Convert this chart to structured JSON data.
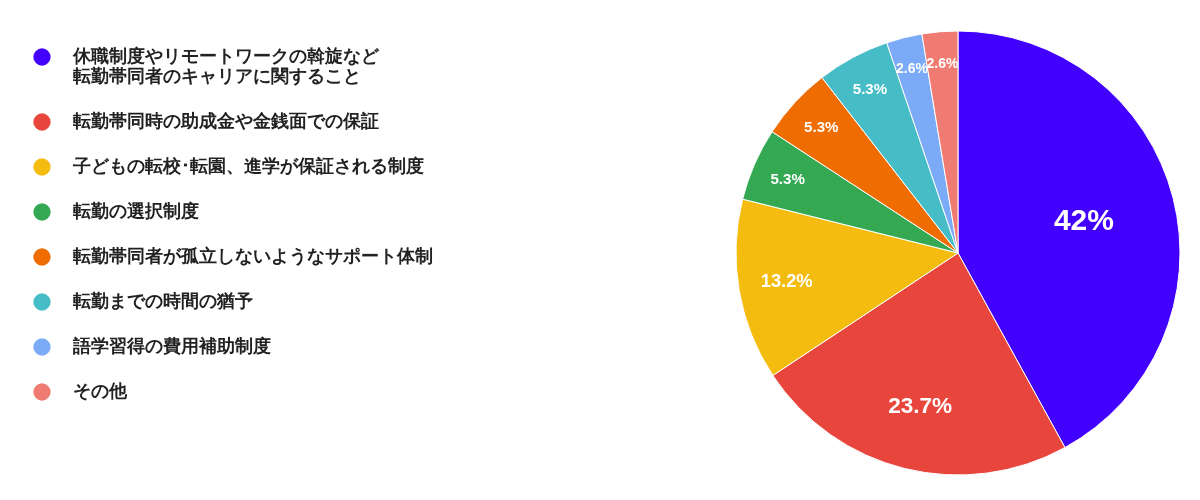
{
  "chart_data": {
    "type": "pie",
    "categories": [
      "休職制度やリモートワークの斡旋など転勤帯同者のキャリアに関すること",
      "転勤帯同時の助成金や金銭面での保証",
      "子どもの転校･転園、進学が保証される制度",
      "転勤の選択制度",
      "転勤帯同者が孤立しないようなサポート体制",
      "転勤までの時間の猶予",
      "語学習得の費用補助制度",
      "その他"
    ],
    "values": [
      42,
      23.7,
      13.2,
      5.3,
      5.3,
      5.3,
      2.6,
      2.6
    ],
    "colors": [
      "#4200ff",
      "#e8453c",
      "#f4bc0e",
      "#34a853",
      "#ef6c00",
      "#46bdc6",
      "#7baaf7",
      "#f07b72"
    ],
    "value_labels": [
      "42%",
      "23.7%",
      "13.2%",
      "5.3%",
      "5.3%",
      "5.3%",
      "2.6%",
      "2.6%"
    ],
    "legend": "left"
  }
}
